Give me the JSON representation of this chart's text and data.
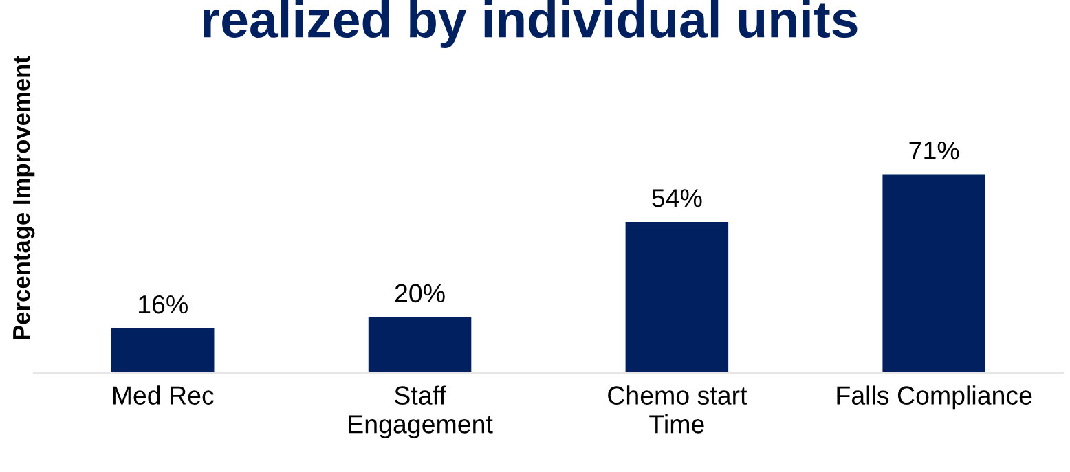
{
  "chart_data": {
    "type": "bar",
    "title": "realized by individual units",
    "ylabel": "Percentage Improvement",
    "categories": [
      "Med Rec",
      "Staff\nEngagement",
      "Chemo start\nTime",
      "Falls Compliance"
    ],
    "values": [
      16,
      20,
      54,
      71
    ],
    "value_labels": [
      "16%",
      "20%",
      "54%",
      "71%"
    ],
    "color": "#002060",
    "grid": false,
    "legend": false
  }
}
